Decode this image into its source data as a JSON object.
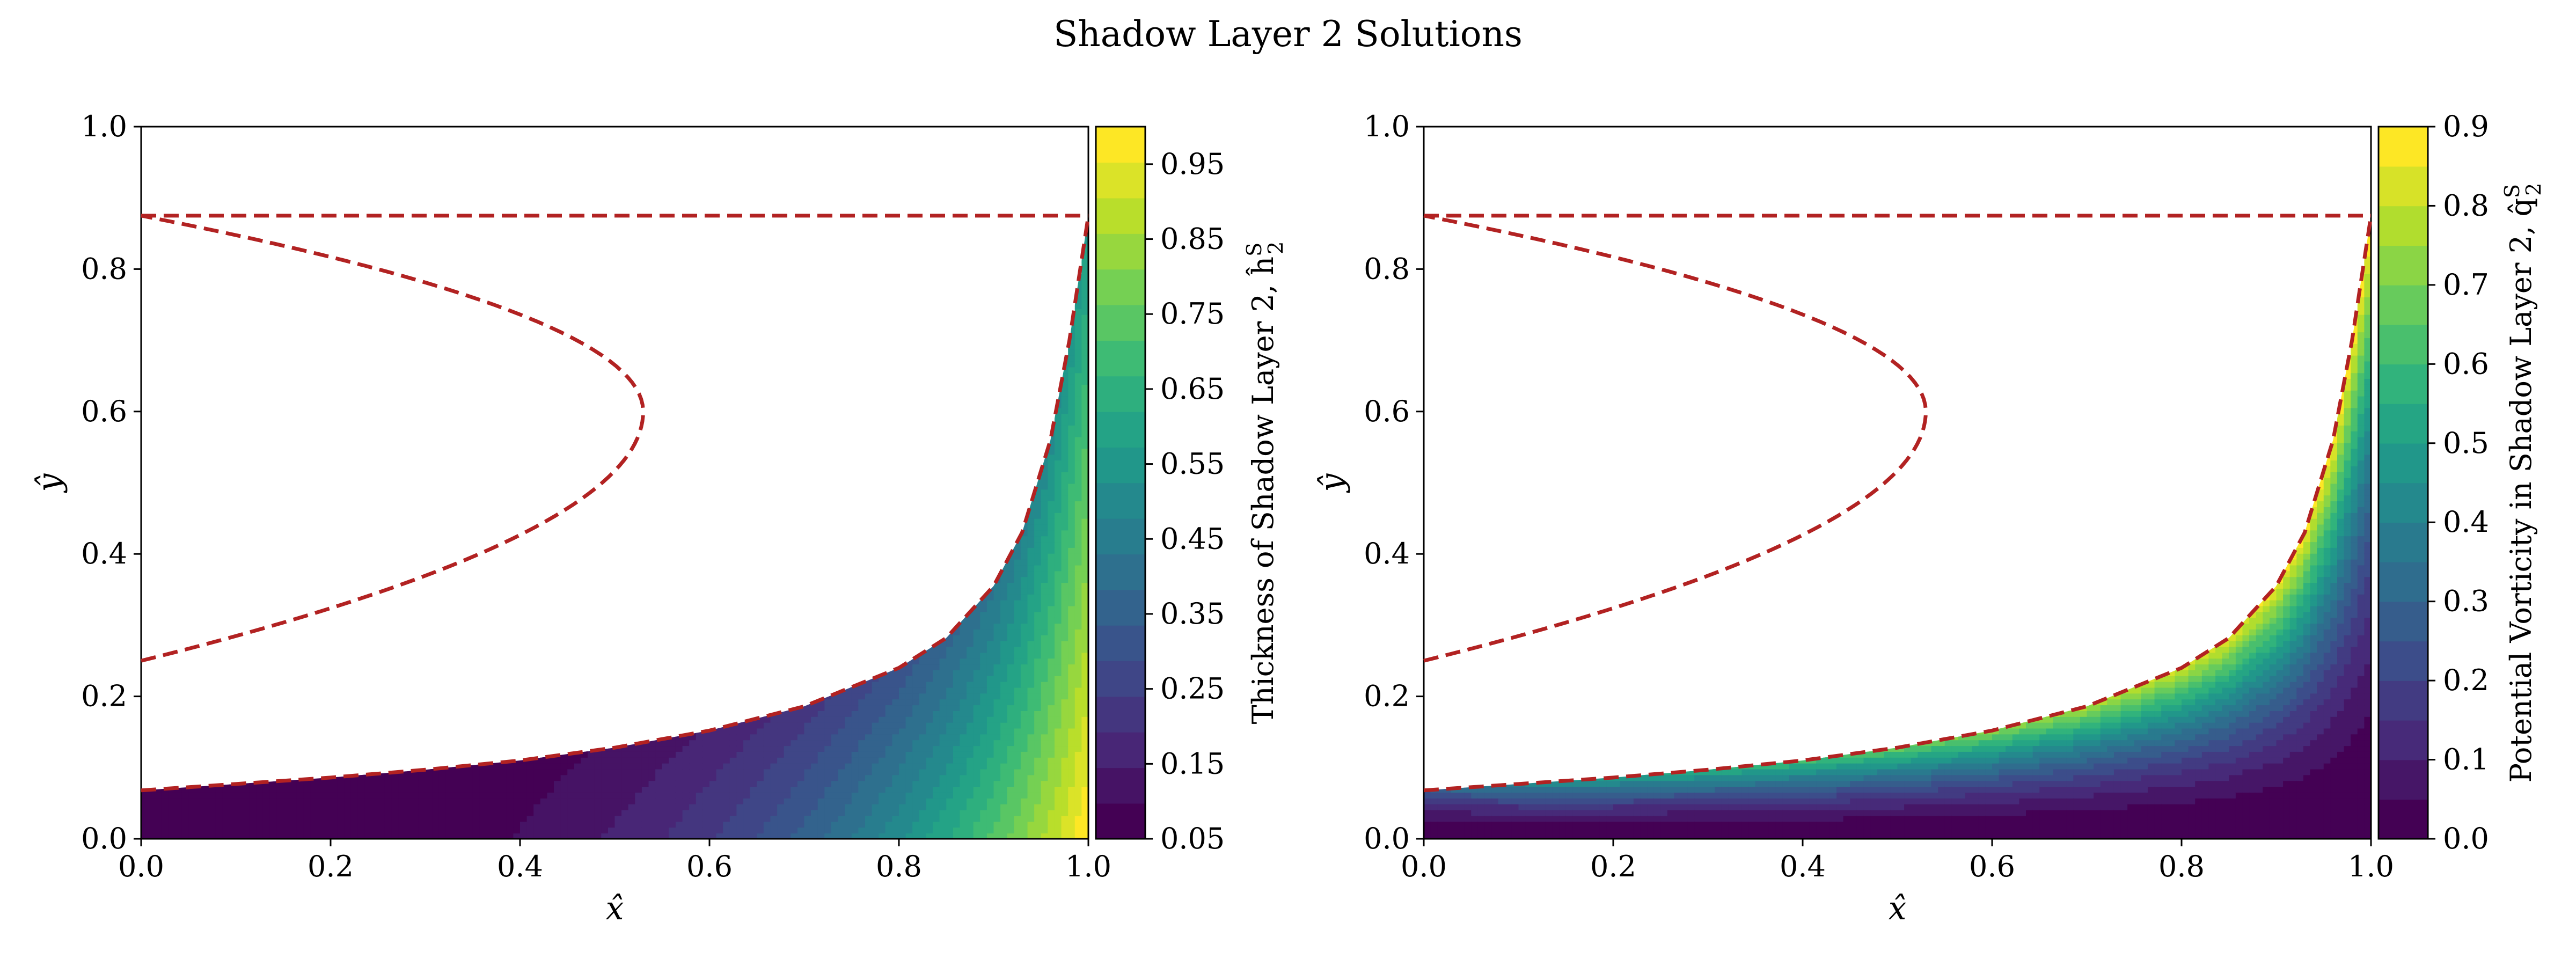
{
  "figure": {
    "title": "Shadow Layer 2 Solutions"
  },
  "colors": {
    "boundary": "#b22222",
    "viridis": [
      "#440154",
      "#482878",
      "#3e4989",
      "#31688e",
      "#26828e",
      "#1f9e89",
      "#35b779",
      "#6ece58",
      "#b5de2b",
      "#fde725"
    ]
  },
  "chart_data": [
    {
      "type": "heatmap",
      "name": "left",
      "xlabel": "x̂",
      "ylabel": "ŷ",
      "xlim": [
        0,
        1
      ],
      "ylim": [
        0,
        1
      ],
      "x_ticks": [
        "0.0",
        "0.2",
        "0.4",
        "0.6",
        "0.8",
        "1.0"
      ],
      "y_ticks": [
        "0.0",
        "0.2",
        "0.4",
        "0.6",
        "0.8",
        "1.0"
      ],
      "field_description": "filled contours below lower dashed boundary; value increases with x, peaks near x=1, y=0",
      "colorbar": {
        "label": "Thickness of Shadow Layer 2, ĥ",
        "label_sup": "S",
        "label_sub": "2",
        "min": 0.05,
        "max": 1.0,
        "ticks": [
          "0.05",
          "0.15",
          "0.25",
          "0.35",
          "0.45",
          "0.55",
          "0.65",
          "0.75",
          "0.85",
          "0.95"
        ],
        "tick_values": [
          0.05,
          0.15,
          0.25,
          0.35,
          0.45,
          0.55,
          0.65,
          0.75,
          0.85,
          0.95
        ],
        "levels": 20
      },
      "boundaries": {
        "top_line_y": 0.875,
        "parabola": {
          "x_max": 0.53,
          "y_vertex": 0.6,
          "y_top": 0.875,
          "y_bottom": 0.25
        },
        "lower_curve": [
          [
            0,
            0.068
          ],
          [
            0.1,
            0.077
          ],
          [
            0.2,
            0.086
          ],
          [
            0.3,
            0.097
          ],
          [
            0.4,
            0.11
          ],
          [
            0.5,
            0.128
          ],
          [
            0.6,
            0.152
          ],
          [
            0.7,
            0.186
          ],
          [
            0.8,
            0.24
          ],
          [
            0.85,
            0.282
          ],
          [
            0.9,
            0.355
          ],
          [
            0.93,
            0.43
          ],
          [
            0.96,
            0.56
          ],
          [
            0.98,
            0.7
          ],
          [
            1.0,
            0.875
          ]
        ]
      }
    },
    {
      "type": "heatmap",
      "name": "right",
      "xlabel": "x̂",
      "ylabel": "ŷ",
      "xlim": [
        0,
        1
      ],
      "ylim": [
        0,
        1
      ],
      "x_ticks": [
        "0.0",
        "0.2",
        "0.4",
        "0.6",
        "0.8",
        "1.0"
      ],
      "y_ticks": [
        "0.0",
        "0.2",
        "0.4",
        "0.6",
        "0.8",
        "1.0"
      ],
      "field_description": "filled contours below lower dashed boundary; value increases with y toward the boundary",
      "colorbar": {
        "label": "Potential Vorticity in Shadow Layer 2, q̂",
        "label_sup": "S",
        "label_sub": "2",
        "min": 0.0,
        "max": 0.9,
        "ticks": [
          "0.0",
          "0.1",
          "0.2",
          "0.3",
          "0.4",
          "0.5",
          "0.6",
          "0.7",
          "0.8",
          "0.9"
        ],
        "tick_values": [
          0.0,
          0.1,
          0.2,
          0.3,
          0.4,
          0.5,
          0.6,
          0.7,
          0.8,
          0.9
        ],
        "levels": 18
      },
      "boundaries": {
        "top_line_y": 0.875,
        "parabola": {
          "x_max": 0.53,
          "y_vertex": 0.6,
          "y_top": 0.875,
          "y_bottom": 0.25
        },
        "lower_curve": [
          [
            0,
            0.068
          ],
          [
            0.1,
            0.077
          ],
          [
            0.2,
            0.086
          ],
          [
            0.3,
            0.097
          ],
          [
            0.4,
            0.11
          ],
          [
            0.5,
            0.128
          ],
          [
            0.6,
            0.152
          ],
          [
            0.7,
            0.186
          ],
          [
            0.8,
            0.24
          ],
          [
            0.85,
            0.282
          ],
          [
            0.9,
            0.355
          ],
          [
            0.93,
            0.43
          ],
          [
            0.96,
            0.56
          ],
          [
            0.98,
            0.7
          ],
          [
            1.0,
            0.875
          ]
        ]
      }
    }
  ]
}
